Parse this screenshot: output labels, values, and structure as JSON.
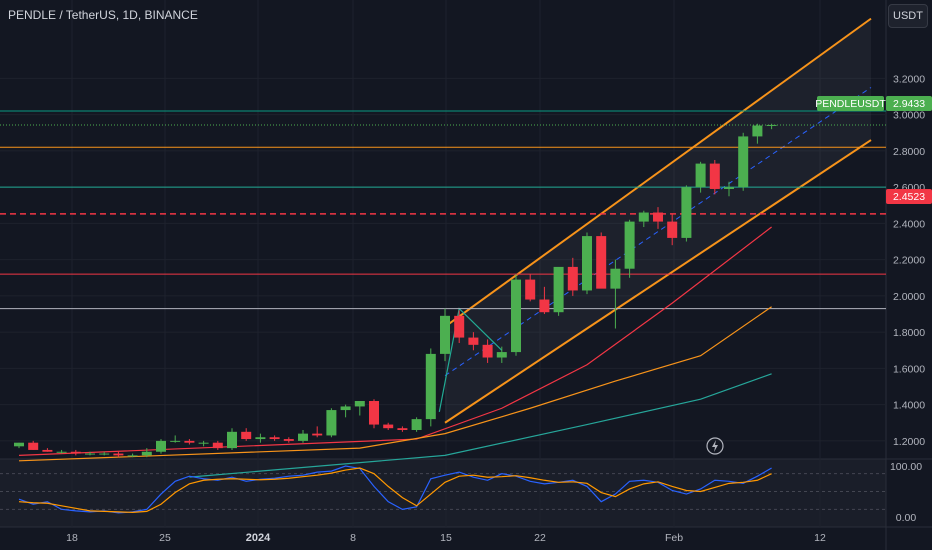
{
  "header": {
    "title": "PENDLE / TetherUS, 1D, BINANCE",
    "currency_button": "USDT"
  },
  "labels": {
    "symbol_tag": "PENDLEUSDT",
    "last_price": "2.9433",
    "level_price": "2.4523"
  },
  "colors": {
    "background": "#131722",
    "up": "#4caf50",
    "down": "#f23645",
    "channel": "#f7931a",
    "osc_fast": "#2962ff",
    "osc_slow": "#ff9800"
  },
  "chart_data": [
    {
      "type": "candlestick",
      "title": "PENDLE / TetherUS, 1D, BINANCE",
      "ylim": [
        1.1,
        3.55
      ],
      "y_ticks": [
        "3.2000",
        "3.0000",
        "2.8000",
        "2.6000",
        "2.4000",
        "2.2000",
        "2.0000",
        "1.8000",
        "1.6000",
        "1.4000",
        "1.2000"
      ],
      "x_ticks": [
        "18",
        "25",
        "2024",
        "8",
        "15",
        "22",
        "Feb",
        "12"
      ],
      "candles": [
        [
          1.17,
          1.19,
          1.16,
          1.19
        ],
        [
          1.19,
          1.2,
          1.15,
          1.15
        ],
        [
          1.15,
          1.16,
          1.14,
          1.14
        ],
        [
          1.14,
          1.15,
          1.13,
          1.14
        ],
        [
          1.14,
          1.15,
          1.12,
          1.13
        ],
        [
          1.13,
          1.14,
          1.12,
          1.13
        ],
        [
          1.13,
          1.14,
          1.12,
          1.13
        ],
        [
          1.13,
          1.14,
          1.11,
          1.12
        ],
        [
          1.12,
          1.13,
          1.11,
          1.12
        ],
        [
          1.12,
          1.16,
          1.11,
          1.14
        ],
        [
          1.14,
          1.21,
          1.13,
          1.2
        ],
        [
          1.2,
          1.23,
          1.19,
          1.2
        ],
        [
          1.2,
          1.21,
          1.18,
          1.19
        ],
        [
          1.19,
          1.2,
          1.17,
          1.19
        ],
        [
          1.19,
          1.2,
          1.15,
          1.16
        ],
        [
          1.16,
          1.27,
          1.15,
          1.25
        ],
        [
          1.25,
          1.27,
          1.2,
          1.21
        ],
        [
          1.21,
          1.24,
          1.19,
          1.22
        ],
        [
          1.22,
          1.23,
          1.2,
          1.21
        ],
        [
          1.21,
          1.22,
          1.19,
          1.2
        ],
        [
          1.2,
          1.26,
          1.19,
          1.24
        ],
        [
          1.24,
          1.28,
          1.22,
          1.23
        ],
        [
          1.23,
          1.38,
          1.22,
          1.37
        ],
        [
          1.37,
          1.4,
          1.33,
          1.39
        ],
        [
          1.39,
          1.42,
          1.34,
          1.42
        ],
        [
          1.42,
          1.43,
          1.27,
          1.29
        ],
        [
          1.29,
          1.3,
          1.26,
          1.27
        ],
        [
          1.27,
          1.28,
          1.25,
          1.26
        ],
        [
          1.26,
          1.33,
          1.25,
          1.32
        ],
        [
          1.32,
          1.71,
          1.28,
          1.68
        ],
        [
          1.68,
          1.93,
          1.64,
          1.89
        ],
        [
          1.89,
          1.92,
          1.74,
          1.77
        ],
        [
          1.77,
          1.8,
          1.7,
          1.73
        ],
        [
          1.73,
          1.76,
          1.63,
          1.66
        ],
        [
          1.66,
          1.72,
          1.63,
          1.69
        ],
        [
          1.69,
          2.12,
          1.67,
          2.09
        ],
        [
          2.09,
          2.12,
          1.97,
          1.98
        ],
        [
          1.98,
          2.05,
          1.9,
          1.91
        ],
        [
          1.91,
          2.15,
          1.89,
          2.16
        ],
        [
          2.16,
          2.21,
          2.0,
          2.03
        ],
        [
          2.03,
          2.35,
          2.01,
          2.33
        ],
        [
          2.33,
          2.35,
          2.05,
          2.04
        ],
        [
          2.04,
          2.2,
          1.82,
          2.15
        ],
        [
          2.15,
          2.42,
          2.1,
          2.41
        ],
        [
          2.41,
          2.47,
          2.38,
          2.46
        ],
        [
          2.46,
          2.49,
          2.37,
          2.41
        ],
        [
          2.41,
          2.45,
          2.28,
          2.32
        ],
        [
          2.32,
          2.61,
          2.3,
          2.6
        ],
        [
          2.6,
          2.74,
          2.57,
          2.73
        ],
        [
          2.73,
          2.75,
          2.56,
          2.59
        ],
        [
          2.59,
          2.63,
          2.55,
          2.6
        ],
        [
          2.6,
          2.9,
          2.58,
          2.88
        ],
        [
          2.88,
          2.95,
          2.84,
          2.94
        ],
        [
          2.94,
          2.95,
          2.92,
          2.9433
        ]
      ],
      "horizontal_levels": [
        {
          "price": 3.02,
          "color": "#089981",
          "style": "solid"
        },
        {
          "price": 2.82,
          "color": "#f7931a",
          "style": "solid"
        },
        {
          "price": 2.6,
          "color": "#22ab94",
          "style": "solid"
        },
        {
          "price": 2.4523,
          "color": "#f23645",
          "style": "dashed"
        },
        {
          "price": 2.12,
          "color": "#f23645",
          "style": "solid"
        },
        {
          "price": 1.93,
          "color": "#b2b5be",
          "style": "solid"
        }
      ],
      "channel": {
        "upper": [
          [
            30,
            1.83
          ],
          [
            60,
            3.53
          ]
        ],
        "lower": [
          [
            30,
            1.3
          ],
          [
            60,
            2.86
          ]
        ],
        "mid": [
          [
            30,
            1.56
          ],
          [
            60,
            3.15
          ]
        ]
      },
      "moving_averages": [
        {
          "color": "#f23645",
          "points": [
            [
              0,
              1.12
            ],
            [
              28,
              1.21
            ],
            [
              34,
              1.38
            ],
            [
              40,
              1.62
            ],
            [
              46,
              1.96
            ],
            [
              53,
              2.38
            ]
          ]
        },
        {
          "color": "#f7931a",
          "points": [
            [
              0,
              1.09
            ],
            [
              24,
              1.16
            ],
            [
              30,
              1.24
            ],
            [
              36,
              1.38
            ],
            [
              42,
              1.53
            ],
            [
              48,
              1.67
            ],
            [
              53,
              1.94
            ]
          ]
        },
        {
          "color": "#26a69a",
          "points": [
            [
              12,
              1.0
            ],
            [
              30,
              1.12
            ],
            [
              40,
              1.29
            ],
            [
              48,
              1.43
            ],
            [
              53,
              1.57
            ]
          ]
        }
      ]
    },
    {
      "type": "line",
      "ylim": [
        0,
        100
      ],
      "y_ticks": [
        "100.00",
        "0.00"
      ],
      "series": [
        {
          "color": "#2962ff",
          "values": [
            35,
            25,
            30,
            15,
            12,
            10,
            12,
            8,
            10,
            15,
            45,
            70,
            80,
            75,
            72,
            78,
            70,
            74,
            76,
            80,
            82,
            88,
            90,
            100,
            95,
            60,
            30,
            15,
            20,
            75,
            82,
            88,
            78,
            72,
            85,
            80,
            70,
            65,
            68,
            72,
            60,
            30,
            45,
            70,
            72,
            68,
            52,
            45,
            55,
            72,
            70,
            66,
            80,
            96
          ]
        },
        {
          "color": "#ff9800",
          "values": [
            30,
            28,
            27,
            22,
            17,
            12,
            11,
            10,
            9,
            11,
            25,
            48,
            65,
            72,
            74,
            75,
            74,
            73,
            74,
            76,
            79,
            82,
            86,
            92,
            96,
            85,
            60,
            38,
            22,
            45,
            68,
            80,
            82,
            78,
            79,
            81,
            77,
            72,
            68,
            69,
            66,
            48,
            40,
            55,
            65,
            69,
            60,
            52,
            50,
            58,
            66,
            68,
            72,
            85
          ]
        }
      ]
    }
  ]
}
